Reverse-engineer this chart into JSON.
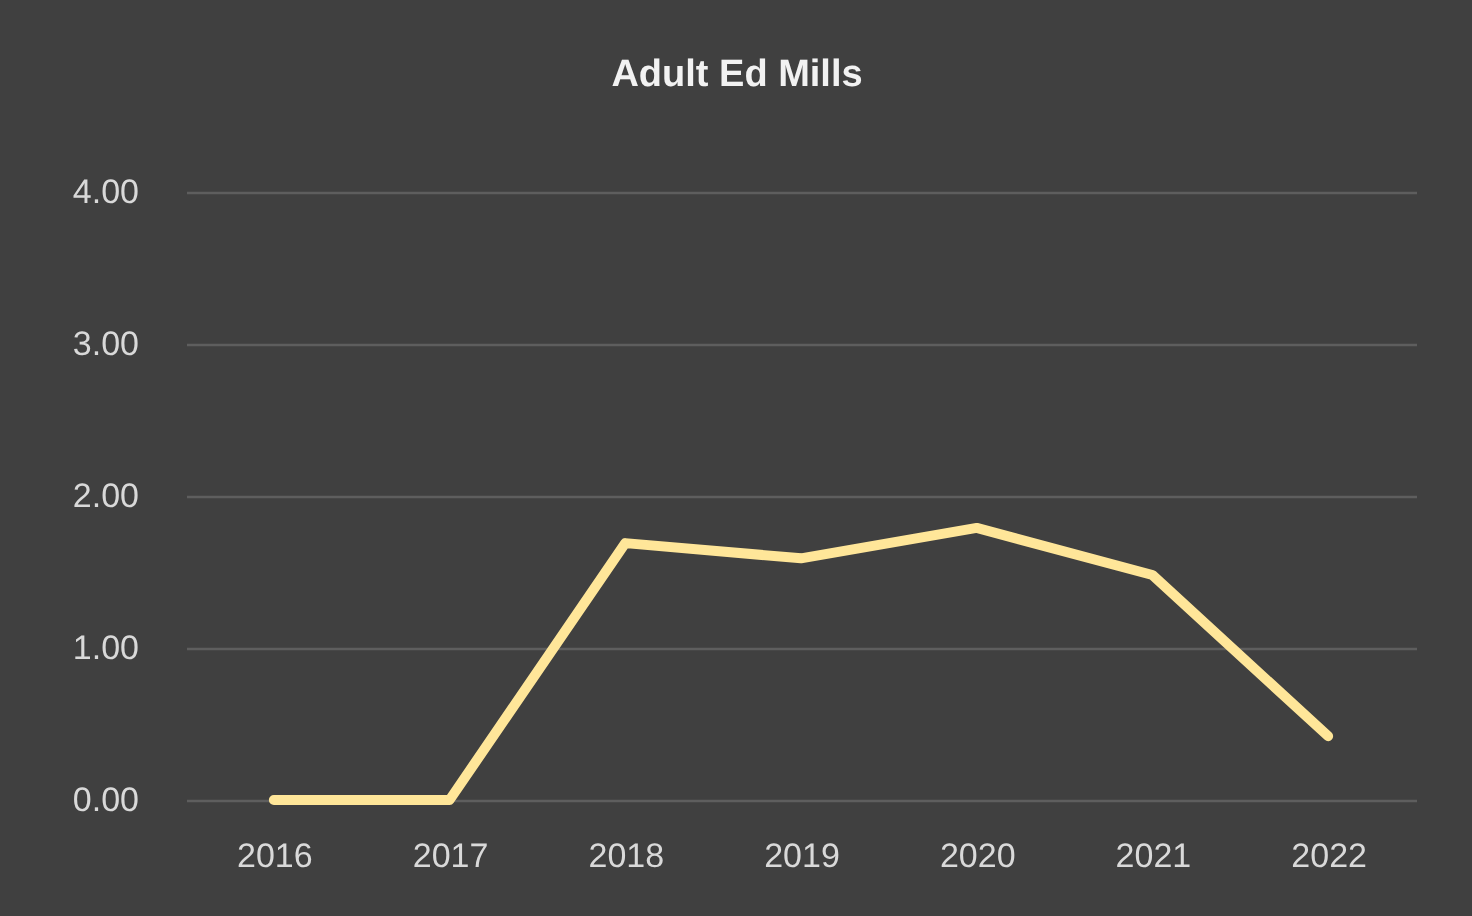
{
  "chart_data": {
    "type": "line",
    "title": "Adult Ed Mills",
    "categories": [
      "2016",
      "2017",
      "2018",
      "2019",
      "2020",
      "2021",
      "2022"
    ],
    "values": [
      0.0,
      0.0,
      1.69,
      1.59,
      1.79,
      1.48,
      0.42
    ],
    "color": "#ffe699",
    "ylim": [
      0,
      4
    ],
    "yticks": [
      {
        "value": 0,
        "label": "0.00"
      },
      {
        "value": 1,
        "label": "1.00"
      },
      {
        "value": 2,
        "label": "2.00"
      },
      {
        "value": 3,
        "label": "3.00"
      },
      {
        "value": 4,
        "label": "4.00"
      }
    ],
    "grid": "y"
  }
}
